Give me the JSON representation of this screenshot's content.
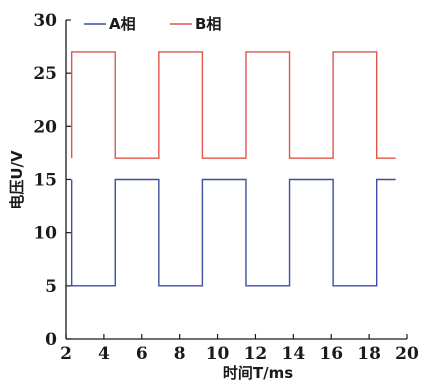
{
  "chart_data": {
    "type": "line",
    "title": "",
    "xlabel": "时间T/ms",
    "ylabel": "电压U/V",
    "xlim": [
      2,
      20
    ],
    "ylim": [
      0,
      30
    ],
    "xticks": [
      2,
      4,
      6,
      8,
      10,
      12,
      14,
      16,
      18,
      20
    ],
    "yticks": [
      0,
      5,
      10,
      15,
      20,
      25,
      30
    ],
    "grid": false,
    "legend_position": "top-left",
    "series": [
      {
        "name": "A相",
        "color": "#3d4fa3",
        "x": [
          2.3,
          2.3,
          4.6,
          4.6,
          6.9,
          6.9,
          9.2,
          9.2,
          11.5,
          11.5,
          13.8,
          13.8,
          16.1,
          16.1,
          18.4,
          18.4,
          19.4
        ],
        "y": [
          15,
          5,
          5,
          15,
          15,
          5,
          5,
          15,
          15,
          5,
          5,
          15,
          15,
          5,
          5,
          15,
          15
        ]
      },
      {
        "name": "B相",
        "color": "#e0554a",
        "x": [
          2.3,
          2.3,
          4.6,
          4.6,
          6.9,
          6.9,
          9.2,
          9.2,
          11.5,
          11.5,
          13.8,
          13.8,
          16.1,
          16.1,
          18.4,
          18.4,
          19.4
        ],
        "y": [
          17,
          27,
          27,
          17,
          17,
          27,
          27,
          17,
          17,
          27,
          27,
          17,
          17,
          27,
          27,
          17,
          17
        ]
      }
    ]
  }
}
